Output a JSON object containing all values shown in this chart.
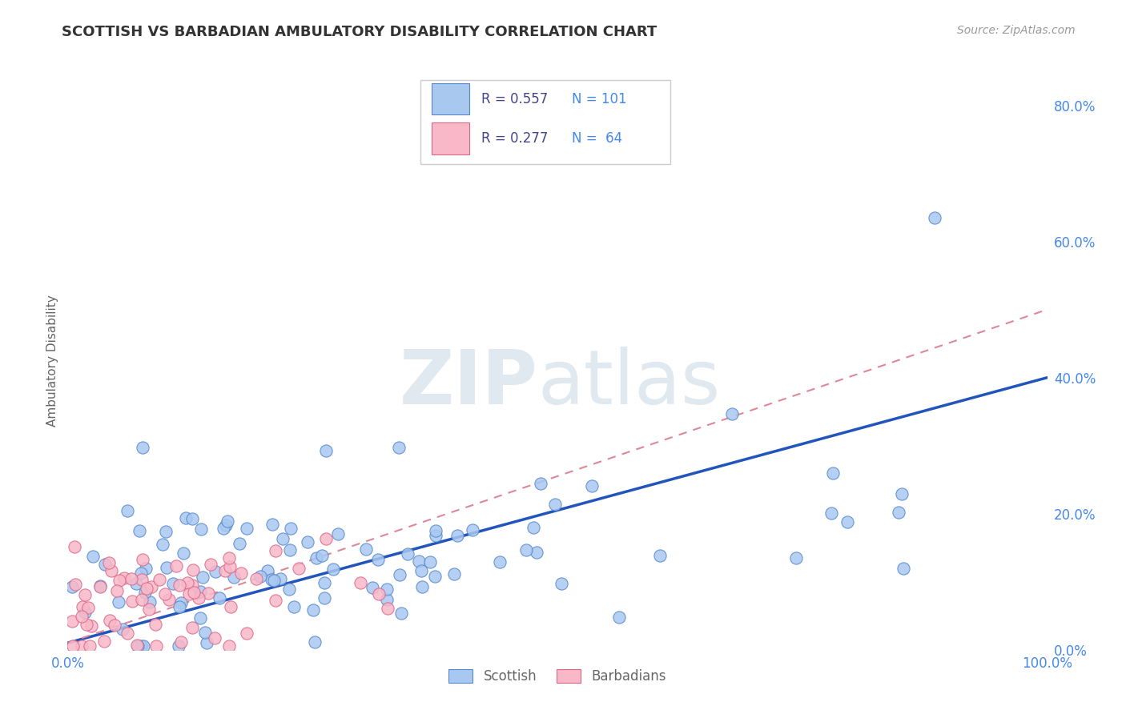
{
  "title": "SCOTTISH VS BARBADIAN AMBULATORY DISABILITY CORRELATION CHART",
  "source": "Source: ZipAtlas.com",
  "ylabel": "Ambulatory Disability",
  "legend_scottish": "Scottish",
  "legend_barbadians": "Barbadians",
  "scottish_R": 0.557,
  "scottish_N": 101,
  "barbadian_R": 0.277,
  "barbadian_N": 64,
  "scottish_dot_color": "#a8c8f0",
  "scottish_dot_edge": "#5588cc",
  "scottish_line_color": "#2255bb",
  "barbadian_dot_color": "#f8b8c8",
  "barbadian_dot_edge": "#dd6688",
  "barbadian_line_color": "#dd8899",
  "background_color": "#ffffff",
  "grid_color": "#cccccc",
  "title_color": "#333333",
  "axis_label_color": "#666666",
  "tick_color": "#4488ee",
  "watermark_color": "#e0e8f0",
  "watermark_text_zip": "ZIP",
  "watermark_text_atlas": "atlas",
  "xlim": [
    0.0,
    1.0
  ],
  "ylim": [
    0.0,
    0.85
  ],
  "right_ytick_labels": [
    "0.0%",
    "20.0%",
    "40.0%",
    "60.0%",
    "80.0%"
  ],
  "right_ytick_values": [
    0.0,
    0.2,
    0.4,
    0.6,
    0.8
  ],
  "xtick_labels": [
    "0.0%",
    "",
    "",
    "",
    "",
    "100.0%"
  ],
  "xtick_values": [
    0.0,
    0.2,
    0.4,
    0.6,
    0.8,
    1.0
  ],
  "sc_line_x0": 0.0,
  "sc_line_x1": 1.0,
  "sc_line_y0": 0.01,
  "sc_line_y1": 0.4,
  "ba_line_x0": 0.0,
  "ba_line_x1": 1.0,
  "ba_line_y0": 0.01,
  "ba_line_y1": 0.5
}
